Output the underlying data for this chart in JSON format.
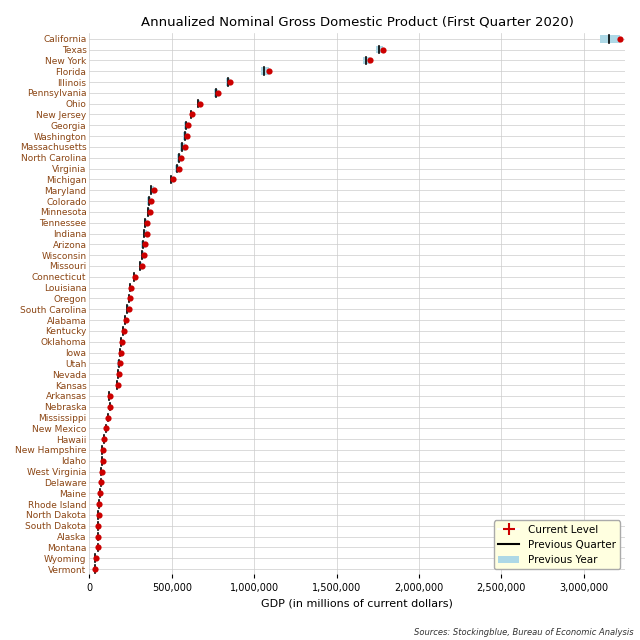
{
  "title": "Annualized Nominal Gross Domestic Product (First Quarter 2020)",
  "xlabel": "GDP (in millions of current dollars)",
  "source": "Sources: Stockingblue, Bureau of Economic Analysis",
  "states": [
    "California",
    "Texas",
    "New York",
    "Florida",
    "Illinois",
    "Pennsylvania",
    "Ohio",
    "New Jersey",
    "Georgia",
    "Washington",
    "Massachusetts",
    "North Carolina",
    "Virginia",
    "Michigan",
    "Maryland",
    "Colorado",
    "Minnesota",
    "Tennessee",
    "Indiana",
    "Arizona",
    "Wisconsin",
    "Missouri",
    "Connecticut",
    "Louisiana",
    "Oregon",
    "South Carolina",
    "Alabama",
    "Kentucky",
    "Oklahoma",
    "Iowa",
    "Utah",
    "Nevada",
    "Kansas",
    "Arkansas",
    "Nebraska",
    "Mississippi",
    "New Mexico",
    "Hawaii",
    "New Hampshire",
    "Idaho",
    "West Virginia",
    "Delaware",
    "Maine",
    "Rhode Island",
    "North Dakota",
    "South Dakota",
    "Alaska",
    "Montana",
    "Wyoming",
    "Vermont"
  ],
  "current": [
    3220000,
    1779000,
    1706000,
    1093000,
    855000,
    782000,
    674000,
    624000,
    601000,
    593000,
    581000,
    556000,
    542000,
    507000,
    394000,
    376000,
    368000,
    352000,
    348000,
    340000,
    333000,
    318000,
    278000,
    253000,
    248000,
    239000,
    225000,
    212000,
    199000,
    194000,
    186000,
    183000,
    172000,
    127000,
    128000,
    115000,
    104000,
    91000,
    82000,
    81000,
    75000,
    73000,
    66000,
    62000,
    57000,
    55000,
    54000,
    52000,
    39000,
    34000
  ],
  "prev_quarter": [
    3150000,
    1755000,
    1680000,
    1060000,
    840000,
    770000,
    660000,
    618000,
    588000,
    578000,
    565000,
    544000,
    530000,
    498000,
    377000,
    363000,
    358000,
    340000,
    335000,
    325000,
    322000,
    307000,
    271000,
    246000,
    241000,
    230000,
    218000,
    205000,
    192000,
    188000,
    179000,
    177000,
    167000,
    122000,
    127000,
    112000,
    101000,
    88000,
    80000,
    78000,
    73000,
    71000,
    64000,
    60000,
    55000,
    54000,
    52000,
    50000,
    37000,
    33000
  ],
  "prev_year": [
    3100000,
    1740000,
    1660000,
    1040000,
    828000,
    755000,
    651000,
    610000,
    577000,
    566000,
    553000,
    534000,
    519000,
    488000,
    368000,
    353000,
    349000,
    330000,
    327000,
    315000,
    313000,
    299000,
    265000,
    240000,
    234000,
    222000,
    211000,
    198000,
    186000,
    183000,
    170000,
    170000,
    162000,
    118000,
    122000,
    109000,
    97000,
    86000,
    77000,
    74000,
    71000,
    69000,
    62000,
    58000,
    54000,
    51000,
    50000,
    48000,
    36000,
    32000
  ],
  "current_color": "#cc0000",
  "prev_quarter_color": "#000000",
  "prev_year_color": "#add8e6",
  "background_color": "#ffffff",
  "grid_color": "#cccccc",
  "label_color": "#8b4513",
  "xlim": [
    0,
    3250000
  ],
  "title_fontsize": 9.5,
  "label_fontsize": 8,
  "tick_fontsize": 7,
  "state_fontsize": 6.5,
  "legend_fontsize": 7.5
}
